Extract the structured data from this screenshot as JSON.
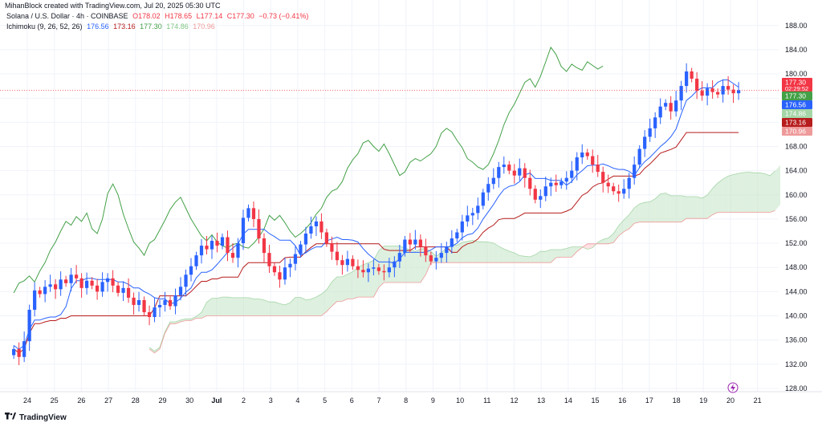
{
  "credit": "MihanBlock created with TradingView.com, Jul 20, 2025 05:30 UTC",
  "legend_line1": {
    "symbol": "Solana / U.S. Dollar · 4h · COINBASE",
    "open": "O178.02",
    "high": "H178.65",
    "low": "L177.14",
    "close": "C177.30",
    "change": "−0.73 (−0.41%)"
  },
  "legend_line2": {
    "name": "Ichimoku (9, 26, 52, 26)",
    "v1": "176.56",
    "v2": "173.16",
    "v3": "177.30",
    "v4": "174.86",
    "v5": "170.96"
  },
  "footer": {
    "brand": "TradingView",
    "icon": "tradingview-logo-icon"
  },
  "colors": {
    "up": "#2962ff",
    "down": "#f23645",
    "conversion": "#2962ff",
    "base": "#b71c1c",
    "lagging": "#43a047",
    "cloud_bull": "#c8e6c9",
    "cloud_bear": "#ffcdd2",
    "grid": "#f0f3fa",
    "axis_text": "#131722"
  },
  "badges": [
    {
      "label": "177.30",
      "sub": "02:29:52",
      "value": 177.3,
      "color": "#f23645"
    },
    {
      "label": "177.30",
      "value": 177.3,
      "color": "#43a047"
    },
    {
      "label": "176.56",
      "value": 176.56,
      "color": "#2962ff"
    },
    {
      "label": "174.86",
      "value": 174.86,
      "color": "#a5d6a7"
    },
    {
      "label": "173.16",
      "value": 173.16,
      "color": "#b71c1c"
    },
    {
      "label": "170.96",
      "value": 170.96,
      "color": "#ef9a9a"
    }
  ],
  "chart_data": {
    "type": "candlestick",
    "title": "Solana / U.S. Dollar · 4h · COINBASE",
    "ylim": [
      126,
      191
    ],
    "y_ticks": [
      128,
      132,
      136,
      140,
      144,
      148,
      152,
      156,
      160,
      164,
      168,
      172,
      176,
      180,
      184,
      188
    ],
    "x_range": [
      23.5,
      21.9
    ],
    "x_ticks": [
      {
        "label": "24",
        "t": 24
      },
      {
        "label": "25",
        "t": 25
      },
      {
        "label": "26",
        "t": 26
      },
      {
        "label": "27",
        "t": 27
      },
      {
        "label": "28",
        "t": 28
      },
      {
        "label": "29",
        "t": 29
      },
      {
        "label": "30",
        "t": 30
      },
      {
        "label": "Jul",
        "t": 31
      },
      {
        "label": "2",
        "t": 32
      },
      {
        "label": "3",
        "t": 33
      },
      {
        "label": "4",
        "t": 34
      },
      {
        "label": "5",
        "t": 35
      },
      {
        "label": "6",
        "t": 36
      },
      {
        "label": "7",
        "t": 37
      },
      {
        "label": "8",
        "t": 38
      },
      {
        "label": "9",
        "t": 39
      },
      {
        "label": "10",
        "t": 40
      },
      {
        "label": "11",
        "t": 41
      },
      {
        "label": "12",
        "t": 42
      },
      {
        "label": "13",
        "t": 43
      },
      {
        "label": "14",
        "t": 44
      },
      {
        "label": "15",
        "t": 45
      },
      {
        "label": "16",
        "t": 46
      },
      {
        "label": "17",
        "t": 47
      },
      {
        "label": "18",
        "t": 48
      },
      {
        "label": "19",
        "t": 49
      },
      {
        "label": "20",
        "t": 50
      },
      {
        "label": "21",
        "t": 51
      }
    ],
    "candles_close": [
      134.5,
      133.2,
      135.8,
      141.0,
      144.2,
      143.6,
      144.8,
      145.2,
      144.4,
      146.0,
      145.4,
      146.8,
      146.2,
      144.6,
      145.8,
      145.0,
      144.0,
      145.6,
      146.2,
      145.0,
      143.8,
      144.6,
      143.0,
      141.8,
      142.6,
      140.6,
      139.8,
      141.4,
      141.8,
      142.6,
      141.6,
      143.4,
      144.8,
      146.8,
      148.2,
      150.0,
      151.6,
      151.0,
      152.4,
      151.6,
      153.0,
      150.4,
      149.6,
      152.0,
      156.2,
      157.8,
      156.0,
      152.8,
      150.4,
      148.2,
      147.2,
      146.0,
      148.0,
      148.6,
      150.2,
      151.8,
      153.6,
      154.8,
      155.6,
      153.8,
      152.0,
      150.6,
      149.2,
      148.4,
      149.4,
      148.2,
      147.6,
      147.2,
      147.8,
      148.0,
      147.4,
      147.2,
      148.0,
      149.0,
      150.4,
      152.6,
      151.8,
      152.6,
      151.4,
      150.0,
      149.0,
      149.6,
      150.4,
      151.4,
      152.8,
      153.8,
      155.6,
      156.6,
      157.0,
      158.2,
      160.4,
      161.8,
      162.8,
      164.6,
      165.0,
      164.0,
      163.2,
      164.4,
      162.8,
      161.0,
      159.2,
      159.8,
      161.4,
      162.0,
      161.6,
      162.2,
      162.8,
      164.0,
      166.2,
      167.0,
      166.4,
      165.0,
      163.8,
      162.0,
      161.4,
      160.6,
      160.2,
      161.0,
      162.8,
      165.0,
      167.6,
      169.6,
      171.0,
      172.8,
      174.6,
      175.2,
      173.8,
      175.6,
      178.0,
      180.4,
      179.2,
      177.2,
      176.4,
      177.6,
      177.0,
      176.6,
      178.0,
      177.4,
      176.8,
      177.3
    ],
    "conversion_line": "blue Tenkan-sen, ends at 176.56",
    "base_line": "red Kijun-sen, ends at 173.16",
    "lagging_span": "green Chikou span, last 177.30",
    "leading_span_a": 174.86,
    "leading_span_b": 170.96,
    "last_price": 177.3,
    "countdown": "02:29:52"
  }
}
